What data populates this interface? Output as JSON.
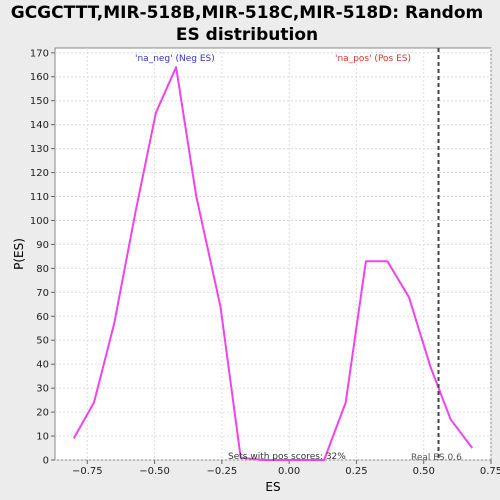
{
  "chart_data": {
    "type": "line",
    "title_lines": [
      "GCGCTTT,MIR-518B,MIR-518C,MIR-518D: Random",
      "ES distribution"
    ],
    "xlabel": "ES",
    "ylabel": "P(ES)",
    "xlim": [
      -0.87,
      0.75
    ],
    "ylim": [
      0,
      172
    ],
    "xticks": [
      -0.75,
      -0.5,
      -0.25,
      0.0,
      0.25,
      0.5,
      0.75
    ],
    "xtick_labels": [
      "−0.75",
      "−0.50",
      "−0.25",
      "0.00",
      "0.25",
      "0.50",
      "0.75"
    ],
    "yticks": [
      0,
      10,
      20,
      30,
      40,
      50,
      60,
      70,
      80,
      90,
      100,
      110,
      120,
      130,
      140,
      150,
      160,
      170
    ],
    "grid": true,
    "series": [
      {
        "color": "#ee44ee",
        "x": [
          -0.8,
          -0.725,
          -0.65,
          -0.57,
          -0.495,
          -0.42,
          -0.345,
          -0.255,
          -0.18,
          -0.1,
          0.05,
          0.13,
          0.21,
          0.285,
          0.365,
          0.445,
          0.525,
          0.6,
          0.68
        ],
        "y": [
          9,
          24,
          57,
          104,
          145,
          164,
          110,
          64,
          1,
          0,
          0,
          0,
          24,
          83,
          83,
          68,
          39,
          17,
          5
        ]
      }
    ],
    "vline": {
      "x": 0.555,
      "style": "dashed",
      "color": "#444444"
    },
    "annotations": {
      "neg_label": {
        "text": "'na_neg' (Neg ES)",
        "color": "#3333cc"
      },
      "pos_label": {
        "text": "'na_pos' (Pos ES)",
        "color": "#dd3333"
      },
      "pos_scores": {
        "text": "Sets with pos scores: 32%",
        "color": "#333333"
      },
      "real_es": {
        "text": "Real ES 0.6",
        "color": "#555555"
      }
    }
  }
}
